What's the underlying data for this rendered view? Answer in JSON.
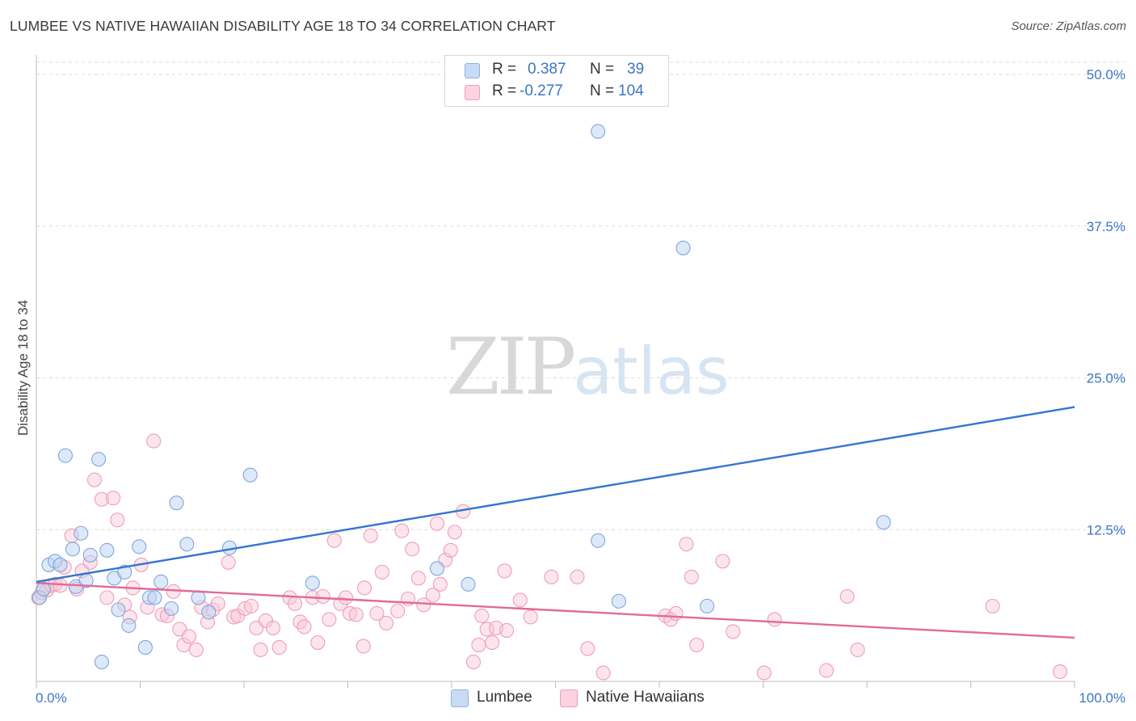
{
  "title": "LUMBEE VS NATIVE HAWAIIAN DISABILITY AGE 18 TO 34 CORRELATION CHART",
  "source": "Source: ZipAtlas.com",
  "watermark": {
    "zip": "ZIP",
    "atlas": "atlas"
  },
  "legend": {
    "rows": [
      {
        "r_label": "R =",
        "r_value": "0.387",
        "n_label": "N =",
        "n_value": "39",
        "color": "#a9c7ee"
      },
      {
        "r_label": "R =",
        "r_value": "-0.277",
        "n_label": "N =",
        "n_value": "104",
        "color": "#f4b5c8"
      }
    ]
  },
  "bottom_legend": [
    {
      "label": "Lumbee",
      "color": "#a9c7ee"
    },
    {
      "label": "Native Hawaiians",
      "color": "#f4b5c8"
    }
  ],
  "chart_data": {
    "type": "scatter",
    "title": "LUMBEE VS NATIVE HAWAIIAN DISABILITY AGE 18 TO 34 CORRELATION CHART",
    "xlabel": "",
    "ylabel": "Disability Age 18 to 34",
    "xlim": [
      0,
      100
    ],
    "ylim": [
      0,
      51
    ],
    "x_tick_labels": [
      "0.0%",
      "100.0%"
    ],
    "y_ticks": [
      12.5,
      25.0,
      37.5,
      50.0
    ],
    "y_tick_labels": [
      "12.5%",
      "25.0%",
      "37.5%",
      "50.0%"
    ],
    "grid": true,
    "legend_position": "top-center",
    "series": [
      {
        "name": "Lumbee",
        "color": "#a9c7ee",
        "line_color": "#3375d1",
        "trend": {
          "x": [
            0,
            100
          ],
          "y": [
            8.2,
            22.6
          ]
        },
        "points": [
          [
            0.3,
            6.9
          ],
          [
            0.7,
            7.6
          ],
          [
            1.2,
            9.6
          ],
          [
            1.8,
            9.9
          ],
          [
            2.3,
            9.6
          ],
          [
            2.8,
            18.6
          ],
          [
            3.5,
            10.9
          ],
          [
            3.8,
            7.8
          ],
          [
            4.3,
            12.2
          ],
          [
            4.8,
            8.3
          ],
          [
            5.2,
            10.4
          ],
          [
            6.0,
            18.3
          ],
          [
            6.3,
            1.6
          ],
          [
            6.8,
            10.8
          ],
          [
            7.5,
            8.5
          ],
          [
            7.9,
            5.9
          ],
          [
            8.5,
            9.0
          ],
          [
            8.9,
            4.6
          ],
          [
            9.9,
            11.1
          ],
          [
            10.5,
            2.8
          ],
          [
            10.9,
            6.9
          ],
          [
            11.4,
            6.9
          ],
          [
            12.0,
            8.2
          ],
          [
            13.0,
            6.0
          ],
          [
            13.5,
            14.7
          ],
          [
            14.5,
            11.3
          ],
          [
            15.6,
            6.9
          ],
          [
            16.6,
            5.7
          ],
          [
            18.6,
            11.0
          ],
          [
            20.6,
            17.0
          ],
          [
            26.6,
            8.1
          ],
          [
            38.6,
            9.3
          ],
          [
            41.6,
            8.0
          ],
          [
            54.1,
            45.3
          ],
          [
            54.1,
            11.6
          ],
          [
            56.1,
            6.6
          ],
          [
            62.3,
            35.7
          ],
          [
            64.6,
            6.2
          ],
          [
            81.6,
            13.1
          ]
        ]
      },
      {
        "name": "Native Hawaiians",
        "color": "#f4b5c8",
        "line_color": "#e2699a",
        "trend": {
          "x": [
            0,
            100
          ],
          "y": [
            8.1,
            3.6
          ]
        },
        "points": [
          [
            0.2,
            6.9
          ],
          [
            0.5,
            7.3
          ],
          [
            1.0,
            7.5
          ],
          [
            1.4,
            7.9
          ],
          [
            1.8,
            8.0
          ],
          [
            2.3,
            7.9
          ],
          [
            2.7,
            9.4
          ],
          [
            3.4,
            12.0
          ],
          [
            3.9,
            7.6
          ],
          [
            4.4,
            9.1
          ],
          [
            5.2,
            9.8
          ],
          [
            5.6,
            16.6
          ],
          [
            6.3,
            15.0
          ],
          [
            6.8,
            6.9
          ],
          [
            7.4,
            15.1
          ],
          [
            7.8,
            13.3
          ],
          [
            8.5,
            6.3
          ],
          [
            9.0,
            5.3
          ],
          [
            9.3,
            7.7
          ],
          [
            10.1,
            9.6
          ],
          [
            10.7,
            6.1
          ],
          [
            11.3,
            19.8
          ],
          [
            12.1,
            5.5
          ],
          [
            12.6,
            5.4
          ],
          [
            13.2,
            7.4
          ],
          [
            13.8,
            4.3
          ],
          [
            14.2,
            3.0
          ],
          [
            14.7,
            3.7
          ],
          [
            15.4,
            2.6
          ],
          [
            15.9,
            6.1
          ],
          [
            16.5,
            4.9
          ],
          [
            17.0,
            5.9
          ],
          [
            17.5,
            6.4
          ],
          [
            18.5,
            9.8
          ],
          [
            19.0,
            5.3
          ],
          [
            19.4,
            5.4
          ],
          [
            20.1,
            6.0
          ],
          [
            20.7,
            6.2
          ],
          [
            21.2,
            4.4
          ],
          [
            21.6,
            2.6
          ],
          [
            22.1,
            5.0
          ],
          [
            22.8,
            4.4
          ],
          [
            23.4,
            2.8
          ],
          [
            24.4,
            6.9
          ],
          [
            24.9,
            6.4
          ],
          [
            25.4,
            4.9
          ],
          [
            25.8,
            4.5
          ],
          [
            26.6,
            6.9
          ],
          [
            27.1,
            3.2
          ],
          [
            27.6,
            7.0
          ],
          [
            28.2,
            5.1
          ],
          [
            28.7,
            11.6
          ],
          [
            29.3,
            6.4
          ],
          [
            29.8,
            6.9
          ],
          [
            30.2,
            5.6
          ],
          [
            30.8,
            5.5
          ],
          [
            31.5,
            2.9
          ],
          [
            31.6,
            7.7
          ],
          [
            32.2,
            12.0
          ],
          [
            32.8,
            5.6
          ],
          [
            33.3,
            9.0
          ],
          [
            33.7,
            4.8
          ],
          [
            34.8,
            5.8
          ],
          [
            35.2,
            12.4
          ],
          [
            35.8,
            6.8
          ],
          [
            36.2,
            10.9
          ],
          [
            36.8,
            8.5
          ],
          [
            37.3,
            6.3
          ],
          [
            38.2,
            7.1
          ],
          [
            38.6,
            13.0
          ],
          [
            38.9,
            8.0
          ],
          [
            39.4,
            10.0
          ],
          [
            39.9,
            10.8
          ],
          [
            40.3,
            12.3
          ],
          [
            41.1,
            14.0
          ],
          [
            42.1,
            1.6
          ],
          [
            42.6,
            3.0
          ],
          [
            42.9,
            5.4
          ],
          [
            43.4,
            4.3
          ],
          [
            43.9,
            3.2
          ],
          [
            44.3,
            4.4
          ],
          [
            45.1,
            9.1
          ],
          [
            45.3,
            4.2
          ],
          [
            46.6,
            6.7
          ],
          [
            47.6,
            5.3
          ],
          [
            49.6,
            8.6
          ],
          [
            52.1,
            8.6
          ],
          [
            53.1,
            2.7
          ],
          [
            54.6,
            0.7
          ],
          [
            60.6,
            5.4
          ],
          [
            61.1,
            5.1
          ],
          [
            61.6,
            5.6
          ],
          [
            62.6,
            11.3
          ],
          [
            63.1,
            8.6
          ],
          [
            63.6,
            3.0
          ],
          [
            66.1,
            9.9
          ],
          [
            67.1,
            4.1
          ],
          [
            70.1,
            0.7
          ],
          [
            71.1,
            5.1
          ],
          [
            76.1,
            0.9
          ],
          [
            78.1,
            7.0
          ],
          [
            79.1,
            2.6
          ],
          [
            92.1,
            6.2
          ],
          [
            98.6,
            0.8
          ]
        ]
      }
    ]
  }
}
